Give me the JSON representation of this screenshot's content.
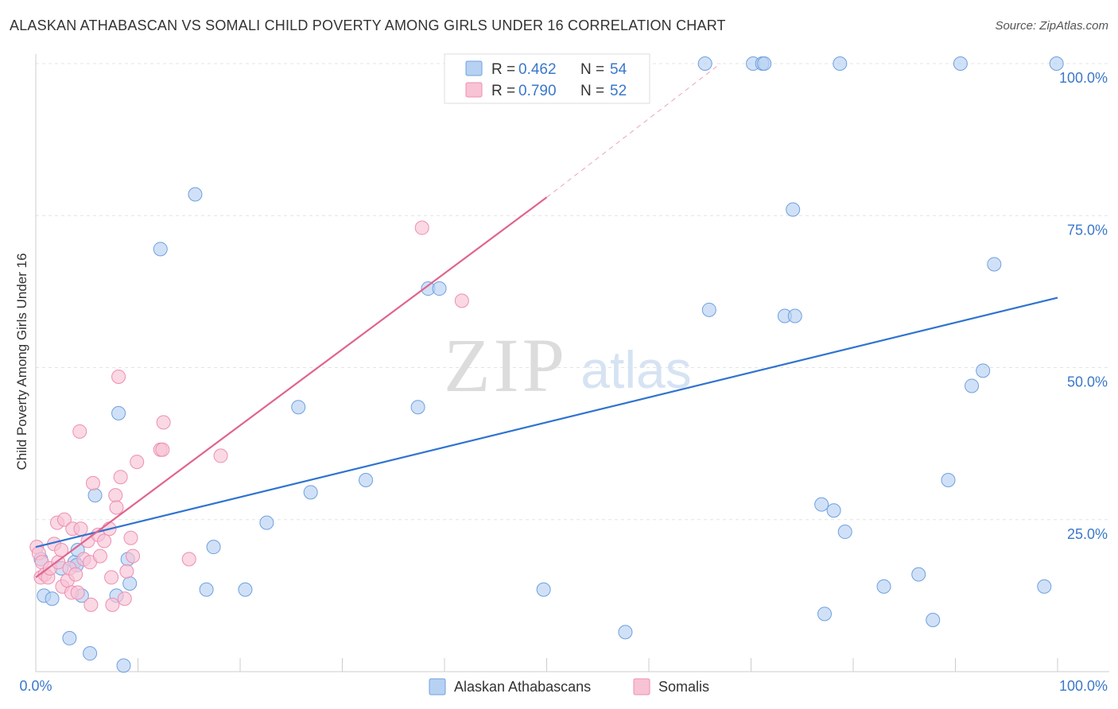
{
  "title": "ALASKAN ATHABASCAN VS SOMALI CHILD POVERTY AMONG GIRLS UNDER 16 CORRELATION CHART",
  "source": "Source: ZipAtlas.com",
  "watermark": {
    "zip": "ZIP",
    "atlas": "atlas"
  },
  "chart_data": {
    "type": "scatter",
    "xlabel": "",
    "ylabel": "Child Poverty Among Girls Under 16",
    "xlim": [
      0,
      100
    ],
    "ylim": [
      0,
      100
    ],
    "x_tick_labels": {
      "min": "0.0%",
      "max": "100.0%"
    },
    "y_ticks": [
      25,
      50,
      75,
      100
    ],
    "y_tick_labels": [
      "25.0%",
      "50.0%",
      "75.0%",
      "100.0%"
    ],
    "grid": true,
    "legend_position": "top-center",
    "series": [
      {
        "name": "Alaskan Athabascans",
        "color": "#6fa0e0",
        "fill": "#b7d1f2",
        "line_color": "#2f73d0",
        "R": "0.462",
        "N": "54",
        "r_label": "R =",
        "n_label": "N =",
        "trend": {
          "x0": 0,
          "y0": 20.5,
          "x1": 100,
          "y1": 61.5
        },
        "points": [
          [
            0.5,
            18.5
          ],
          [
            0.8,
            12.5
          ],
          [
            1.6,
            12
          ],
          [
            2.5,
            17
          ],
          [
            3.3,
            5.5
          ],
          [
            3.8,
            18
          ],
          [
            4.1,
            20
          ],
          [
            4,
            17.5
          ],
          [
            4.5,
            12.5
          ],
          [
            5.3,
            3
          ],
          [
            5.8,
            29
          ],
          [
            7.9,
            12.5
          ],
          [
            8.1,
            42.5
          ],
          [
            8.6,
            1
          ],
          [
            9,
            18.5
          ],
          [
            9.2,
            14.5
          ],
          [
            12.2,
            69.5
          ],
          [
            15.6,
            78.5
          ],
          [
            16.7,
            13.5
          ],
          [
            17.4,
            20.5
          ],
          [
            20.5,
            13.5
          ],
          [
            22.6,
            24.5
          ],
          [
            25.7,
            43.5
          ],
          [
            26.9,
            29.5
          ],
          [
            32.3,
            31.5
          ],
          [
            37.4,
            43.5
          ],
          [
            38.4,
            63
          ],
          [
            39.5,
            63
          ],
          [
            49.7,
            13.5
          ],
          [
            57.7,
            6.5
          ],
          [
            65.5,
            100
          ],
          [
            65.9,
            59.5
          ],
          [
            70.2,
            100
          ],
          [
            71.1,
            100
          ],
          [
            71.3,
            100
          ],
          [
            73.3,
            58.5
          ],
          [
            74.1,
            76
          ],
          [
            74.3,
            58.5
          ],
          [
            76.9,
            27.5
          ],
          [
            77.2,
            9.5
          ],
          [
            78.1,
            26.5
          ],
          [
            79.2,
            23
          ],
          [
            78.7,
            100
          ],
          [
            83,
            14
          ],
          [
            86.4,
            16
          ],
          [
            87.8,
            8.5
          ],
          [
            89.3,
            31.5
          ],
          [
            90.5,
            100
          ],
          [
            91.6,
            47
          ],
          [
            92.7,
            49.5
          ],
          [
            93.8,
            67
          ],
          [
            98.7,
            14
          ],
          [
            99.9,
            100
          ]
        ]
      },
      {
        "name": "Somalis",
        "color": "#ee8fb0",
        "fill": "#f7c3d5",
        "line_color": "#e0648f",
        "R": "0.790",
        "N": "52",
        "r_label": "R =",
        "n_label": "N =",
        "trend": {
          "x0": 0,
          "y0": 15.5,
          "x1": 50,
          "y1": 78
        },
        "trend_dashed_to": {
          "x": 67,
          "y": 100
        },
        "points": [
          [
            0.1,
            20.5
          ],
          [
            0.3,
            19.5
          ],
          [
            0.5,
            15.5
          ],
          [
            0.6,
            18
          ],
          [
            0.9,
            16
          ],
          [
            1.2,
            15.5
          ],
          [
            1.4,
            17
          ],
          [
            1.8,
            21
          ],
          [
            2.1,
            24.5
          ],
          [
            2.2,
            18
          ],
          [
            2.5,
            20
          ],
          [
            2.6,
            14
          ],
          [
            2.8,
            25
          ],
          [
            3.1,
            15
          ],
          [
            3.3,
            17
          ],
          [
            3.5,
            13
          ],
          [
            3.6,
            23.5
          ],
          [
            3.9,
            16
          ],
          [
            4.1,
            13
          ],
          [
            4.3,
            39.5
          ],
          [
            4.4,
            23.5
          ],
          [
            4.7,
            18.5
          ],
          [
            5.1,
            21.5
          ],
          [
            5.3,
            18
          ],
          [
            5.4,
            11
          ],
          [
            5.6,
            31
          ],
          [
            6.1,
            22.5
          ],
          [
            6.3,
            19
          ],
          [
            6.7,
            21.5
          ],
          [
            7.2,
            23.5
          ],
          [
            7.4,
            15.5
          ],
          [
            7.5,
            11
          ],
          [
            7.8,
            29
          ],
          [
            7.9,
            27
          ],
          [
            8.1,
            48.5
          ],
          [
            8.3,
            32
          ],
          [
            8.7,
            12
          ],
          [
            8.9,
            16.5
          ],
          [
            9.3,
            22
          ],
          [
            9.5,
            19
          ],
          [
            9.9,
            34.5
          ],
          [
            12.2,
            36.5
          ],
          [
            12.4,
            36.5
          ],
          [
            12.5,
            41
          ],
          [
            15,
            18.5
          ],
          [
            18.1,
            35.5
          ],
          [
            37.8,
            73
          ],
          [
            41.7,
            61
          ]
        ]
      }
    ]
  }
}
